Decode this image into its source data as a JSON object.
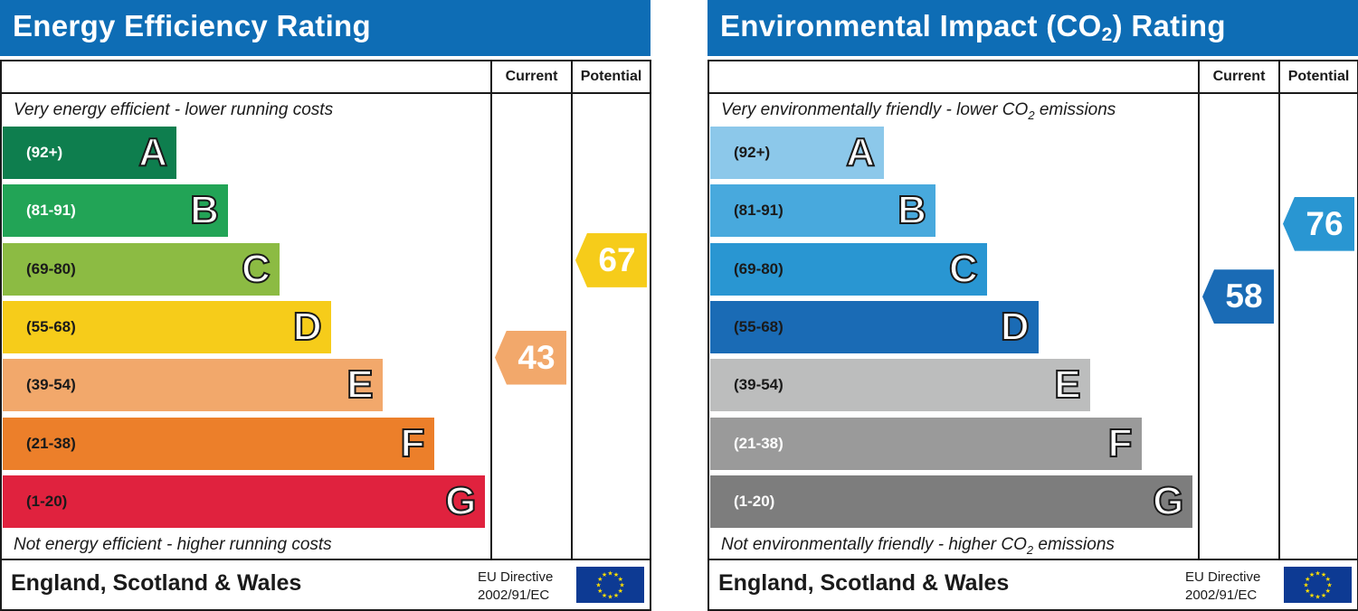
{
  "chart_data": [
    {
      "type": "bar",
      "title": "Energy Efficiency Rating",
      "columns": [
        "Current",
        "Potential"
      ],
      "top_note": "Very energy efficient - lower running costs",
      "bottom_note": "Not energy efficient - higher running costs",
      "bands": [
        {
          "letter": "A",
          "range": "(92+)",
          "color": "#0e7e4e",
          "text_color": "#ffffff"
        },
        {
          "letter": "B",
          "range": "(81-91)",
          "color": "#22a456",
          "text_color": "#ffffff"
        },
        {
          "letter": "C",
          "range": "(69-80)",
          "color": "#8cbb43",
          "text_color": "#1a1a1a"
        },
        {
          "letter": "D",
          "range": "(55-68)",
          "color": "#f6cc1a",
          "text_color": "#1a1a1a"
        },
        {
          "letter": "E",
          "range": "(39-54)",
          "color": "#f2a86b",
          "text_color": "#1a1a1a"
        },
        {
          "letter": "F",
          "range": "(21-38)",
          "color": "#ec7f2a",
          "text_color": "#1a1a1a"
        },
        {
          "letter": "G",
          "range": "(1-20)",
          "color": "#e0223e",
          "text_color": "#1a1a1a"
        }
      ],
      "current": {
        "value": 43,
        "band": "E",
        "color": "#f2a86b"
      },
      "potential": {
        "value": 67,
        "band": "D",
        "color": "#f6cc1a"
      },
      "footer": {
        "country": "England, Scotland & Wales",
        "directive_line1": "EU Directive",
        "directive_line2": "2002/91/EC"
      }
    },
    {
      "type": "bar",
      "title_main": "Environmental Impact (CO",
      "title_sub": "2",
      "title_end": ") Rating",
      "columns": [
        "Current",
        "Potential"
      ],
      "top_note": "Very environmentally friendly - lower CO",
      "top_note_sub": "2",
      "top_note_end": " emissions",
      "bottom_note": "Not environmentally friendly - higher CO",
      "bottom_note_sub": "2",
      "bottom_note_end": " emissions",
      "bands": [
        {
          "letter": "A",
          "range": "(92+)",
          "color": "#8cc8ea",
          "text_color": "#1a1a1a"
        },
        {
          "letter": "B",
          "range": "(81-91)",
          "color": "#48a9dd",
          "text_color": "#1a1a1a"
        },
        {
          "letter": "C",
          "range": "(69-80)",
          "color": "#2996d2",
          "text_color": "#1a1a1a"
        },
        {
          "letter": "D",
          "range": "(55-68)",
          "color": "#1a6bb5",
          "text_color": "#1a1a1a"
        },
        {
          "letter": "E",
          "range": "(39-54)",
          "color": "#bcbdbd",
          "text_color": "#1a1a1a"
        },
        {
          "letter": "F",
          "range": "(21-38)",
          "color": "#9a9a9a",
          "text_color": "#ffffff"
        },
        {
          "letter": "G",
          "range": "(1-20)",
          "color": "#7d7d7d",
          "text_color": "#ffffff"
        }
      ],
      "current": {
        "value": 58,
        "band": "D",
        "color": "#1a6bb5"
      },
      "potential": {
        "value": 76,
        "band": "C",
        "color": "#2996d2"
      },
      "footer": {
        "country": "England, Scotland & Wales",
        "directive_line1": "EU Directive",
        "directive_line2": "2002/91/EC"
      }
    }
  ]
}
